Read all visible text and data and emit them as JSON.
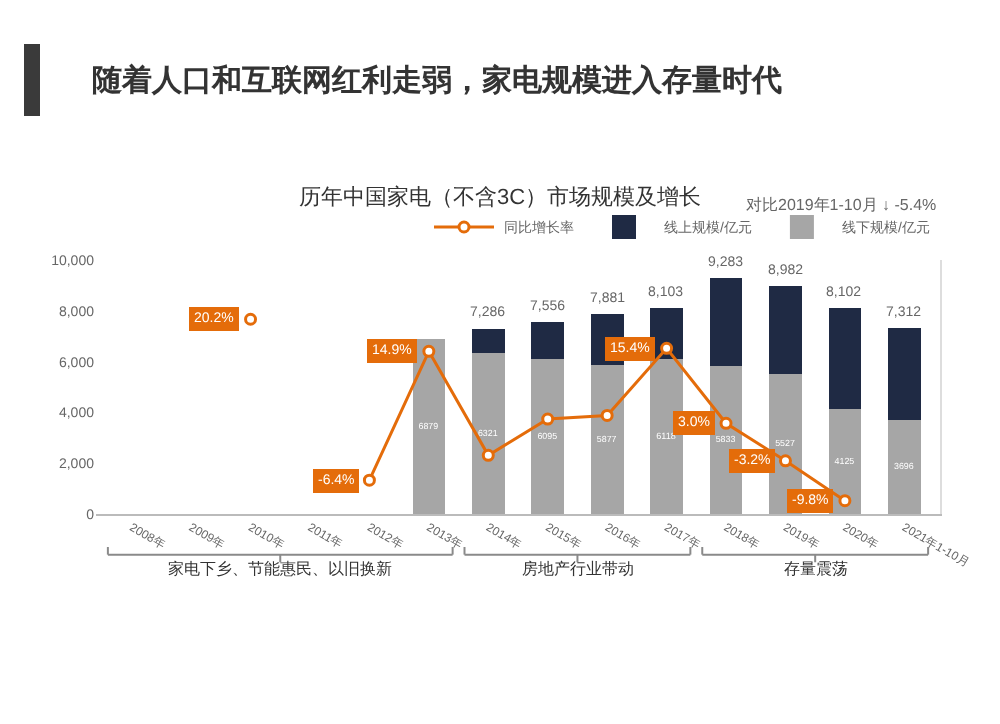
{
  "chart_data": {
    "type": "bar",
    "title": "随着人口和互联网红利走弱，家电规模进入存量时代",
    "subtitle": "历年中国家电（不含3C）市场规模及增长",
    "categories": [
      "2008年",
      "2009年",
      "2010年",
      "2011年",
      "2012年",
      "2013年",
      "2014年",
      "2015年",
      "2016年",
      "2017年",
      "2018年",
      "2019年",
      "2020年",
      "2021年1-10月"
    ],
    "stacked": true,
    "series": [
      {
        "name": "线下规模/亿元",
        "color": "#a6a6a6",
        "values": [
          null,
          null,
          null,
          null,
          null,
          6879,
          6321,
          6095,
          5877,
          6118,
          5833,
          5527,
          4125,
          3696
        ],
        "value_labels": [
          null,
          null,
          null,
          null,
          null,
          "6879",
          "6321",
          "6095",
          "5877",
          "6118",
          "5833",
          "5527",
          "4125",
          "3696"
        ]
      },
      {
        "name": "线上规模/亿元",
        "color": "#1f2a44",
        "values": [
          null,
          null,
          null,
          null,
          null,
          null,
          965,
          1461,
          2004,
          1985,
          3450,
          3455,
          3977,
          3616
        ]
      },
      {
        "name": "同比增长率",
        "type": "line",
        "axis": "y2",
        "color": "#e46c0a",
        "marker": "circle",
        "values": [
          null,
          null,
          20.2,
          null,
          -6.4,
          14.9,
          -2.3,
          3.7,
          4.3,
          15.4,
          3.0,
          -3.2,
          -9.8,
          null
        ],
        "value_labels": [
          null,
          null,
          "20.2%",
          null,
          "-6.4%",
          "14.9%",
          null,
          null,
          null,
          "15.4%",
          "3.0%",
          "-3.2%",
          "-9.8%",
          null
        ]
      }
    ],
    "totals": [
      null,
      null,
      null,
      null,
      null,
      null,
      "7,286",
      "7,556",
      "7,881",
      "8,103",
      "9,283",
      "8,982",
      "8,102",
      "7,312"
    ],
    "ylim": [
      0,
      10000
    ],
    "yticks": [
      0,
      {
        "value": 2000,
        "label": "2,000"
      },
      {
        "value": 4000,
        "label": "4,000"
      },
      {
        "value": 6000,
        "label": "6,000"
      },
      {
        "value": 8000,
        "label": "8,000"
      },
      {
        "value": 10000,
        "label": "10,000"
      }
    ],
    "y2lim": [
      -12,
      30
    ],
    "tick_labels": "xy",
    "grid": false,
    "legend": "top right",
    "annotations": [
      "对比2019年1-10月 ↓ -5.4%",
      "家电下乡、节能惠民、以旧换新",
      "房地产行业带动",
      "存量震荡"
    ]
  }
}
